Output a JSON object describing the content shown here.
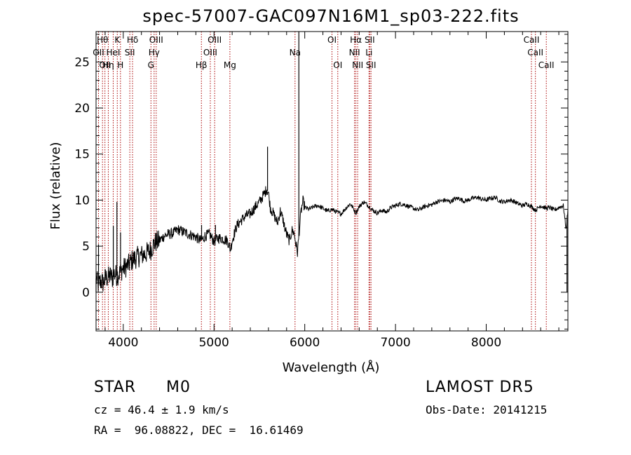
{
  "chart_data": {
    "type": "line",
    "title": "spec-57007-GAC097N16M1_sp03-222.fits",
    "xlabel": "Wavelength (Å)",
    "ylabel": "Flux (relative)",
    "xlim": [
      3700,
      8900
    ],
    "ylim": [
      -4.2,
      28.3
    ],
    "xticks": [
      4000,
      5000,
      6000,
      7000,
      8000
    ],
    "yticks": [
      0,
      5,
      10,
      15,
      20,
      25
    ],
    "grid": false,
    "line_color": "#000000",
    "marker_color": "#aa0000",
    "anchors": [
      [
        3700,
        1.5
      ],
      [
        3720,
        0.8
      ],
      [
        3750,
        1.2
      ],
      [
        3780,
        1.0
      ],
      [
        3800,
        1.5
      ],
      [
        3830,
        1.6
      ],
      [
        3860,
        1.8
      ],
      [
        3880,
        1.5
      ],
      [
        3900,
        2.0
      ],
      [
        3930,
        1.8
      ],
      [
        3960,
        2.1
      ],
      [
        3990,
        2.5
      ],
      [
        4020,
        2.7
      ],
      [
        4060,
        3.0
      ],
      [
        4100,
        3.5
      ],
      [
        4150,
        3.8
      ],
      [
        4200,
        4.0
      ],
      [
        4250,
        4.2
      ],
      [
        4300,
        4.6
      ],
      [
        4350,
        5.4
      ],
      [
        4400,
        5.6
      ],
      [
        4450,
        6.1
      ],
      [
        4500,
        6.3
      ],
      [
        4550,
        6.4
      ],
      [
        4600,
        6.8
      ],
      [
        4650,
        6.6
      ],
      [
        4700,
        6.4
      ],
      [
        4750,
        6.2
      ],
      [
        4800,
        6.0
      ],
      [
        4850,
        5.6
      ],
      [
        4880,
        5.8
      ],
      [
        4900,
        6.1
      ],
      [
        4950,
        6.3
      ],
      [
        5000,
        5.5
      ],
      [
        5050,
        5.9
      ],
      [
        5100,
        5.8
      ],
      [
        5150,
        5.6
      ],
      [
        5180,
        4.6
      ],
      [
        5200,
        5.6
      ],
      [
        5250,
        7.2
      ],
      [
        5300,
        7.8
      ],
      [
        5350,
        8.3
      ],
      [
        5400,
        8.5
      ],
      [
        5450,
        9.2
      ],
      [
        5500,
        9.8
      ],
      [
        5550,
        10.6
      ],
      [
        5580,
        11.2
      ],
      [
        5600,
        10.8
      ],
      [
        5620,
        9.2
      ],
      [
        5650,
        8.6
      ],
      [
        5700,
        7.5
      ],
      [
        5730,
        8.8
      ],
      [
        5760,
        7.9
      ],
      [
        5780,
        7.0
      ],
      [
        5800,
        6.3
      ],
      [
        5830,
        5.6
      ],
      [
        5860,
        6.7
      ],
      [
        5880,
        6.5
      ],
      [
        5900,
        5.4
      ],
      [
        5920,
        4.3
      ],
      [
        5940,
        6.7
      ],
      [
        5960,
        8.8
      ],
      [
        5980,
        9.9
      ],
      [
        6000,
        9.2
      ],
      [
        6050,
        9.0
      ],
      [
        6100,
        9.3
      ],
      [
        6150,
        9.4
      ],
      [
        6200,
        9.1
      ],
      [
        6250,
        8.8
      ],
      [
        6300,
        9.0
      ],
      [
        6350,
        8.7
      ],
      [
        6400,
        8.5
      ],
      [
        6450,
        9.1
      ],
      [
        6500,
        9.6
      ],
      [
        6530,
        9.2
      ],
      [
        6563,
        8.6
      ],
      [
        6600,
        9.3
      ],
      [
        6650,
        9.8
      ],
      [
        6700,
        9.4
      ],
      [
        6750,
        8.9
      ],
      [
        6800,
        8.6
      ],
      [
        6850,
        8.9
      ],
      [
        6900,
        8.7
      ],
      [
        6950,
        9.2
      ],
      [
        7000,
        9.4
      ],
      [
        7050,
        9.6
      ],
      [
        7100,
        9.5
      ],
      [
        7150,
        9.3
      ],
      [
        7200,
        9.1
      ],
      [
        7250,
        8.9
      ],
      [
        7300,
        9.2
      ],
      [
        7350,
        9.4
      ],
      [
        7400,
        9.5
      ],
      [
        7450,
        9.8
      ],
      [
        7500,
        9.9
      ],
      [
        7550,
        10.0
      ],
      [
        7600,
        9.8
      ],
      [
        7650,
        10.1
      ],
      [
        7700,
        10.2
      ],
      [
        7750,
        9.9
      ],
      [
        7800,
        10.0
      ],
      [
        7850,
        10.2
      ],
      [
        7900,
        10.3
      ],
      [
        7950,
        10.1
      ],
      [
        8000,
        10.0
      ],
      [
        8050,
        10.2
      ],
      [
        8100,
        10.3
      ],
      [
        8150,
        9.9
      ],
      [
        8200,
        9.8
      ],
      [
        8250,
        10.0
      ],
      [
        8300,
        9.9
      ],
      [
        8350,
        9.6
      ],
      [
        8400,
        9.4
      ],
      [
        8450,
        9.6
      ],
      [
        8500,
        9.3
      ],
      [
        8542,
        8.9
      ],
      [
        8600,
        9.4
      ],
      [
        8662,
        9.1
      ],
      [
        8700,
        9.2
      ],
      [
        8750,
        8.9
      ],
      [
        8800,
        9.2
      ],
      [
        8850,
        9.4
      ],
      [
        8880,
        6.8
      ],
      [
        8900,
        9.0
      ]
    ],
    "spikes": [
      {
        "x": 3700,
        "y": 0.0
      },
      {
        "x": 3727,
        "y": 5.2
      },
      {
        "x": 3890,
        "y": 7.2
      },
      {
        "x": 3930,
        "y": 9.8
      },
      {
        "x": 3970,
        "y": 6.5
      },
      {
        "x": 4863,
        "y": 7.3
      },
      {
        "x": 5016,
        "y": 7.3
      },
      {
        "x": 5590,
        "y": 15.8
      },
      {
        "x": 5935,
        "y": 28.3
      },
      {
        "x": 8890,
        "y": 0.0
      }
    ],
    "lines": [
      {
        "x": 3727,
        "label": "OII",
        "row": 1
      },
      {
        "x": 3771,
        "label": "Hθ",
        "row": 0
      },
      {
        "x": 3798,
        "label": "OII",
        "row": 2
      },
      {
        "x": 3835,
        "label": "Hη",
        "row": 2
      },
      {
        "x": 3889,
        "label": "HeI",
        "row": 1
      },
      {
        "x": 3934,
        "label": "K",
        "row": 0
      },
      {
        "x": 3969,
        "label": "H",
        "row": 2
      },
      {
        "x": 4072,
        "label": "SII",
        "row": 1
      },
      {
        "x": 4102,
        "label": "Hδ",
        "row": 0
      },
      {
        "x": 4305,
        "label": "G",
        "row": 2
      },
      {
        "x": 4340,
        "label": "Hγ",
        "row": 1
      },
      {
        "x": 4363,
        "label": "OIII",
        "row": 0
      },
      {
        "x": 4861,
        "label": "Hβ",
        "row": 2
      },
      {
        "x": 4959,
        "label": "OIII",
        "row": 1
      },
      {
        "x": 5007,
        "label": "OIII",
        "row": 0
      },
      {
        "x": 5175,
        "label": "Mg",
        "row": 2
      },
      {
        "x": 5893,
        "label": "Na",
        "row": 1
      },
      {
        "x": 6300,
        "label": "OI",
        "row": 0
      },
      {
        "x": 6364,
        "label": "OI",
        "row": 2
      },
      {
        "x": 6548,
        "label": "NII",
        "row": 1
      },
      {
        "x": 6563,
        "label": "Hα",
        "row": 0
      },
      {
        "x": 6583,
        "label": "NII",
        "row": 2
      },
      {
        "x": 6708,
        "label": "Li",
        "row": 1
      },
      {
        "x": 6716,
        "label": "SII",
        "row": 0
      },
      {
        "x": 6730,
        "label": "SII",
        "row": 2
      },
      {
        "x": 8498,
        "label": "CaII",
        "row": 0
      },
      {
        "x": 8542,
        "label": "CaII",
        "row": 1
      },
      {
        "x": 8662,
        "label": "CaII",
        "row": 2
      }
    ]
  },
  "info": {
    "object_class": "STAR",
    "subclass": "M0",
    "survey": "LAMOST DR5",
    "cz": "cz = 46.4 ± 1.9 km/s",
    "obs_date": "Obs-Date: 20141215",
    "coords": "RA =  96.08822, DEC =  16.61469"
  }
}
